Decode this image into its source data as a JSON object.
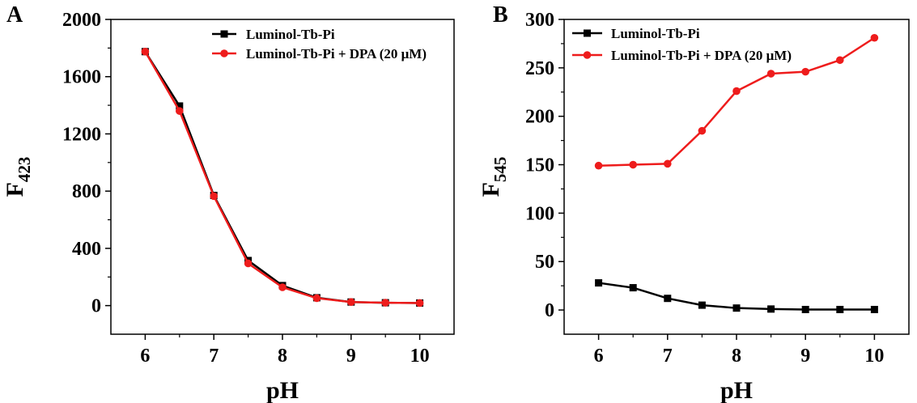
{
  "chart_data": [
    {
      "panel_label": "A",
      "type": "line",
      "xlabel": "pH",
      "ylabel": {
        "base": "F",
        "sub": "423"
      },
      "xlim": [
        5.5,
        10.5
      ],
      "ylim": [
        -200,
        2000
      ],
      "xticks": [
        6,
        7,
        8,
        9,
        10
      ],
      "yticks": [
        0,
        400,
        800,
        1200,
        1600,
        2000
      ],
      "legend_position": "top-right",
      "x": [
        6,
        6.5,
        7,
        7.5,
        8,
        8.5,
        9,
        9.5,
        10
      ],
      "series": [
        {
          "name": "Luminol-Tb-Pi",
          "color": "#000000",
          "marker": "square",
          "values": [
            1775,
            1395,
            770,
            315,
            140,
            55,
            25,
            20,
            18
          ]
        },
        {
          "name": "Luminol-Tb-Pi + DPA (20 μM)",
          "color": "#ee1c1c",
          "marker": "circle",
          "values": [
            1775,
            1360,
            765,
            295,
            128,
            52,
            25,
            20,
            18
          ]
        }
      ]
    },
    {
      "panel_label": "B",
      "type": "line",
      "xlabel": "pH",
      "ylabel": {
        "base": "F",
        "sub": "545"
      },
      "xlim": [
        5.5,
        10.5
      ],
      "ylim": [
        -25,
        300
      ],
      "xticks": [
        6,
        7,
        8,
        9,
        10
      ],
      "yticks": [
        0,
        50,
        100,
        150,
        200,
        250,
        300
      ],
      "legend_position": "top-left",
      "x": [
        6,
        6.5,
        7,
        7.5,
        8,
        8.5,
        9,
        9.5,
        10
      ],
      "series": [
        {
          "name": "Luminol-Tb-Pi",
          "color": "#000000",
          "marker": "square",
          "values": [
            28,
            23,
            12,
            5,
            2,
            1,
            0.5,
            0.5,
            0.5
          ]
        },
        {
          "name": "Luminol-Tb-Pi + DPA (20 μM)",
          "color": "#ee1c1c",
          "marker": "circle",
          "values": [
            149,
            150,
            151,
            185,
            226,
            244,
            246,
            258,
            281
          ]
        }
      ]
    }
  ]
}
